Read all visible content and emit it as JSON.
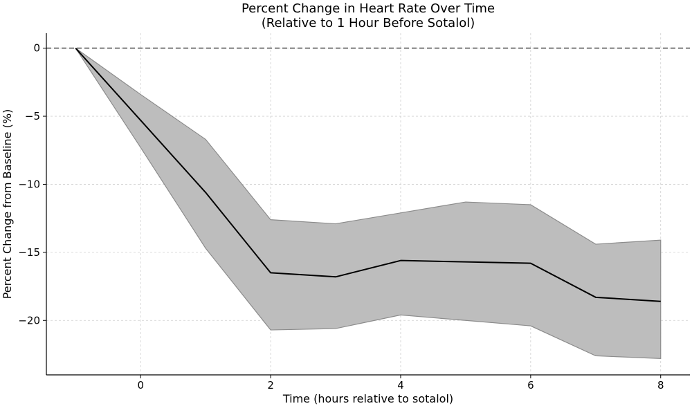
{
  "chart_data": {
    "type": "line",
    "title": "Percent Change in Heart Rate Over Time",
    "subtitle": "(Relative to 1 Hour Before Sotalol)",
    "xlabel": "Time (hours relative to sotalol)",
    "ylabel": "Percent Change from Baseline (%)",
    "xlim": [
      -1.45,
      8.45
    ],
    "ylim": [
      -24,
      1.1
    ],
    "xticks": [
      0,
      2,
      4,
      6,
      8
    ],
    "yticks": [
      0,
      -5,
      -10,
      -15,
      -20
    ],
    "xtick_labels": [
      "0",
      "2",
      "4",
      "6",
      "8"
    ],
    "ytick_labels": [
      "0",
      "−5",
      "−10",
      "−15",
      "−20"
    ],
    "grid": true,
    "reference_line": {
      "y": 0,
      "style": "dashed"
    },
    "x": [
      -1,
      0,
      1,
      2,
      3,
      4,
      5,
      6,
      7,
      8
    ],
    "series": [
      {
        "values": [
          0,
          -5.3,
          -10.6,
          -16.5,
          -16.8,
          -15.6,
          -15.7,
          -15.8,
          -18.3,
          -18.6
        ],
        "color": "#000000"
      }
    ],
    "band": {
      "upper": [
        0,
        -3.4,
        -6.7,
        -12.6,
        -12.9,
        -12.1,
        -11.3,
        -11.5,
        -14.4,
        -14.1
      ],
      "lower": [
        0,
        -7.3,
        -14.7,
        -20.7,
        -20.6,
        -19.6,
        -20.0,
        -20.4,
        -22.6,
        -22.8
      ],
      "color": "#bdbdbd",
      "edge_color": "#8c8c8c"
    }
  }
}
